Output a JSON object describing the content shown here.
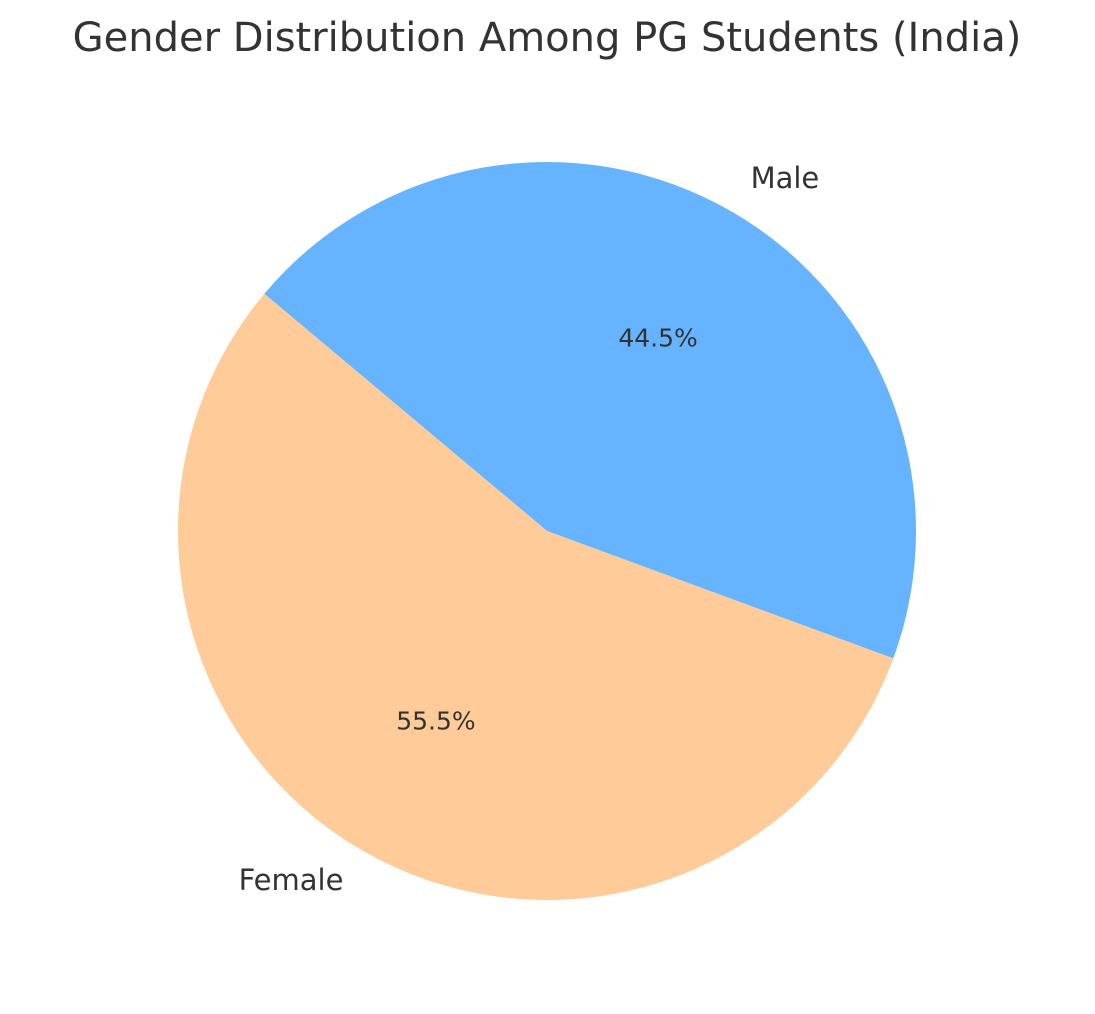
{
  "chart_data": {
    "type": "pie",
    "title": "Gender Distribution Among PG Students (India)",
    "categories": [
      "Male",
      "Female"
    ],
    "values": [
      44.5,
      55.5
    ],
    "value_labels": [
      "44.5%",
      "55.5%"
    ],
    "colors": [
      "#66b3ff",
      "#ffcc99"
    ],
    "startangle": 140,
    "counterclock": false
  }
}
